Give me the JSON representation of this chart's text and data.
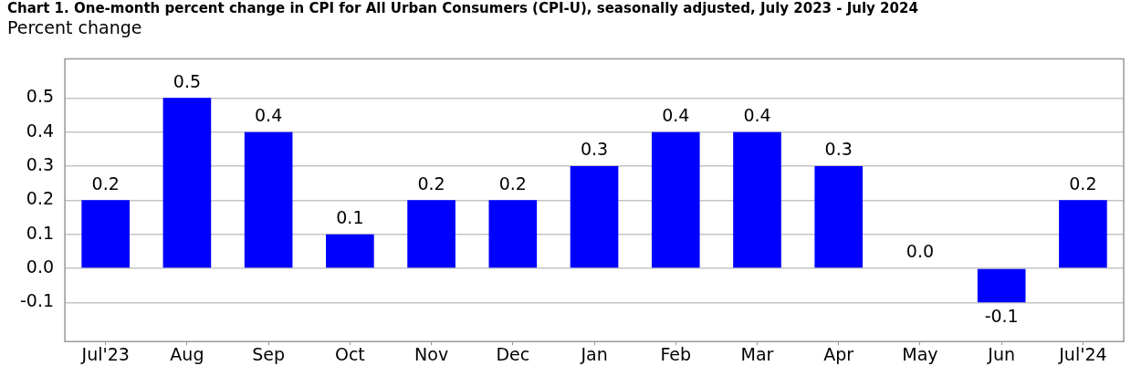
{
  "chart_data": {
    "type": "bar",
    "title": "Chart 1. One-month percent change in CPI for All Urban Consumers (CPI-U), seasonally adjusted, July 2023 - July 2024",
    "ylabel": "Percent change",
    "categories": [
      "Jul'23",
      "Aug",
      "Sep",
      "Oct",
      "Nov",
      "Dec",
      "Jan",
      "Feb",
      "Mar",
      "Apr",
      "May",
      "Jun",
      "Jul'24"
    ],
    "values": [
      0.2,
      0.5,
      0.4,
      0.1,
      0.2,
      0.2,
      0.3,
      0.4,
      0.4,
      0.3,
      0.0,
      -0.1,
      0.2
    ],
    "value_labels": [
      "0.2",
      "0.5",
      "0.4",
      "0.1",
      "0.2",
      "0.2",
      "0.3",
      "0.4",
      "0.4",
      "0.3",
      "0.0",
      "-0.1",
      "0.2"
    ],
    "color": "#0000ff",
    "ylim": [
      -0.215,
      0.615
    ],
    "yticks": [
      -0.1,
      {
        "value": 0,
        "label": "0.0"
      },
      0.1,
      0.2,
      0.3,
      0.4,
      0.5
    ],
    "grid": "y"
  }
}
